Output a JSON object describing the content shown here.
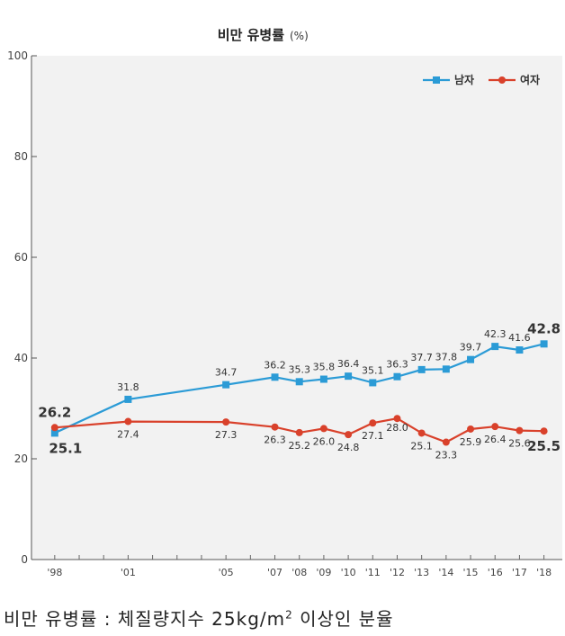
{
  "chart_data": {
    "type": "line",
    "title": "비만 유병률",
    "title_unit": "(%)",
    "categories": [
      "'98",
      "'01",
      "'05",
      "'07",
      "'08",
      "'09",
      "'10",
      "'11",
      "'12",
      "'13",
      "'14",
      "'15",
      "'16",
      "'17",
      "'18"
    ],
    "x_years": [
      1998,
      2001,
      2005,
      2007,
      2008,
      2009,
      2010,
      2011,
      2012,
      2013,
      2014,
      2015,
      2016,
      2017,
      2018
    ],
    "ylim": [
      0,
      100
    ],
    "yticks": [
      0,
      20,
      40,
      60,
      80,
      100
    ],
    "grid": false,
    "legend_position": "top-right",
    "series": [
      {
        "name": "남자",
        "color": "#2b9bd6",
        "marker": "square",
        "values": [
          25.1,
          31.8,
          34.7,
          36.2,
          35.3,
          35.8,
          36.4,
          35.1,
          36.3,
          37.7,
          37.8,
          39.7,
          42.3,
          41.6,
          42.8
        ]
      },
      {
        "name": "여자",
        "color": "#d9412b",
        "marker": "circle",
        "values": [
          26.2,
          27.4,
          27.3,
          26.3,
          25.2,
          26.0,
          24.8,
          27.1,
          28.0,
          25.1,
          23.3,
          25.9,
          26.4,
          25.6,
          25.5
        ]
      }
    ]
  },
  "footnote": {
    "text": "비만 유병률 : 체질량지수 25kg/m",
    "sup": "2",
    "suffix": " 이상인 분율"
  }
}
